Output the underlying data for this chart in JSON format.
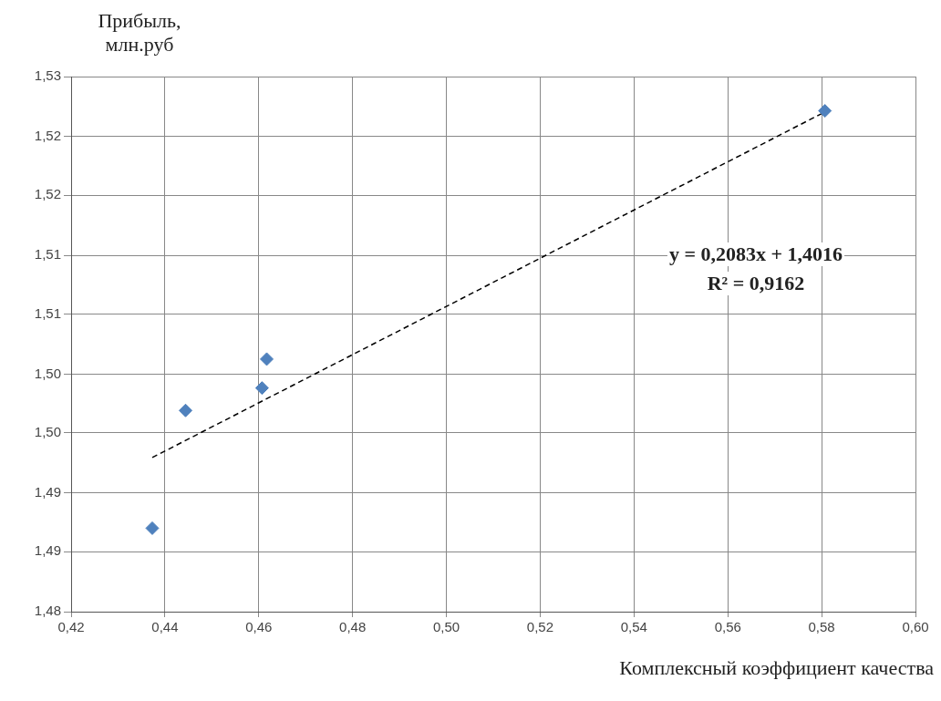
{
  "chart_data": {
    "type": "scatter",
    "xlabel": "Комплексный коэффициент качества",
    "ylabel": "Прибыль, млн.руб",
    "series": [
      {
        "color": "#4f81bd",
        "marker": "diamond",
        "x": [
          0.4373,
          0.4444,
          0.4607,
          0.4617,
          0.5807
        ],
        "values": [
          1.4878,
          1.4988,
          1.5009,
          1.5036,
          1.5268
        ]
      },
      {
        "type": "line",
        "color": "#000000",
        "line_style": "dashed",
        "marker": "none",
        "x": [
          0.4373,
          0.5807
        ],
        "values": [
          1.4944,
          1.5267
        ]
      }
    ],
    "xlim": [
      0.42,
      0.6
    ],
    "xticks": [
      {
        "value": 0.42,
        "label": "0,42"
      },
      {
        "value": 0.44,
        "label": "0,44"
      },
      {
        "value": 0.46,
        "label": "0,46"
      },
      {
        "value": 0.48,
        "label": "0,48"
      },
      {
        "value": 0.5,
        "label": "0,50"
      },
      {
        "value": 0.52,
        "label": "0,52"
      },
      {
        "value": 0.54,
        "label": "0,54"
      },
      {
        "value": 0.56,
        "label": "0,56"
      },
      {
        "value": 0.58,
        "label": "0,58"
      },
      {
        "value": 0.6,
        "label": "0,60"
      }
    ],
    "ylim": [
      1.48,
      1.53
    ],
    "yticks": [
      {
        "value": 1.48,
        "label": "1,48"
      },
      {
        "value": 1.4856,
        "label": "1,49"
      },
      {
        "value": 1.4911,
        "label": "1,49"
      },
      {
        "value": 1.4967,
        "label": "1,50"
      },
      {
        "value": 1.5022,
        "label": "1,50"
      },
      {
        "value": 1.5078,
        "label": "1,51"
      },
      {
        "value": 1.5133,
        "label": "1,51"
      },
      {
        "value": 1.5189,
        "label": "1,52"
      },
      {
        "value": 1.5244,
        "label": "1,52"
      },
      {
        "value": 1.53,
        "label": "1,53"
      }
    ],
    "grid": true,
    "legend": false,
    "annotations": [
      "y = 0,2083x + 1,4016",
      "R² = 0,9162"
    ]
  }
}
